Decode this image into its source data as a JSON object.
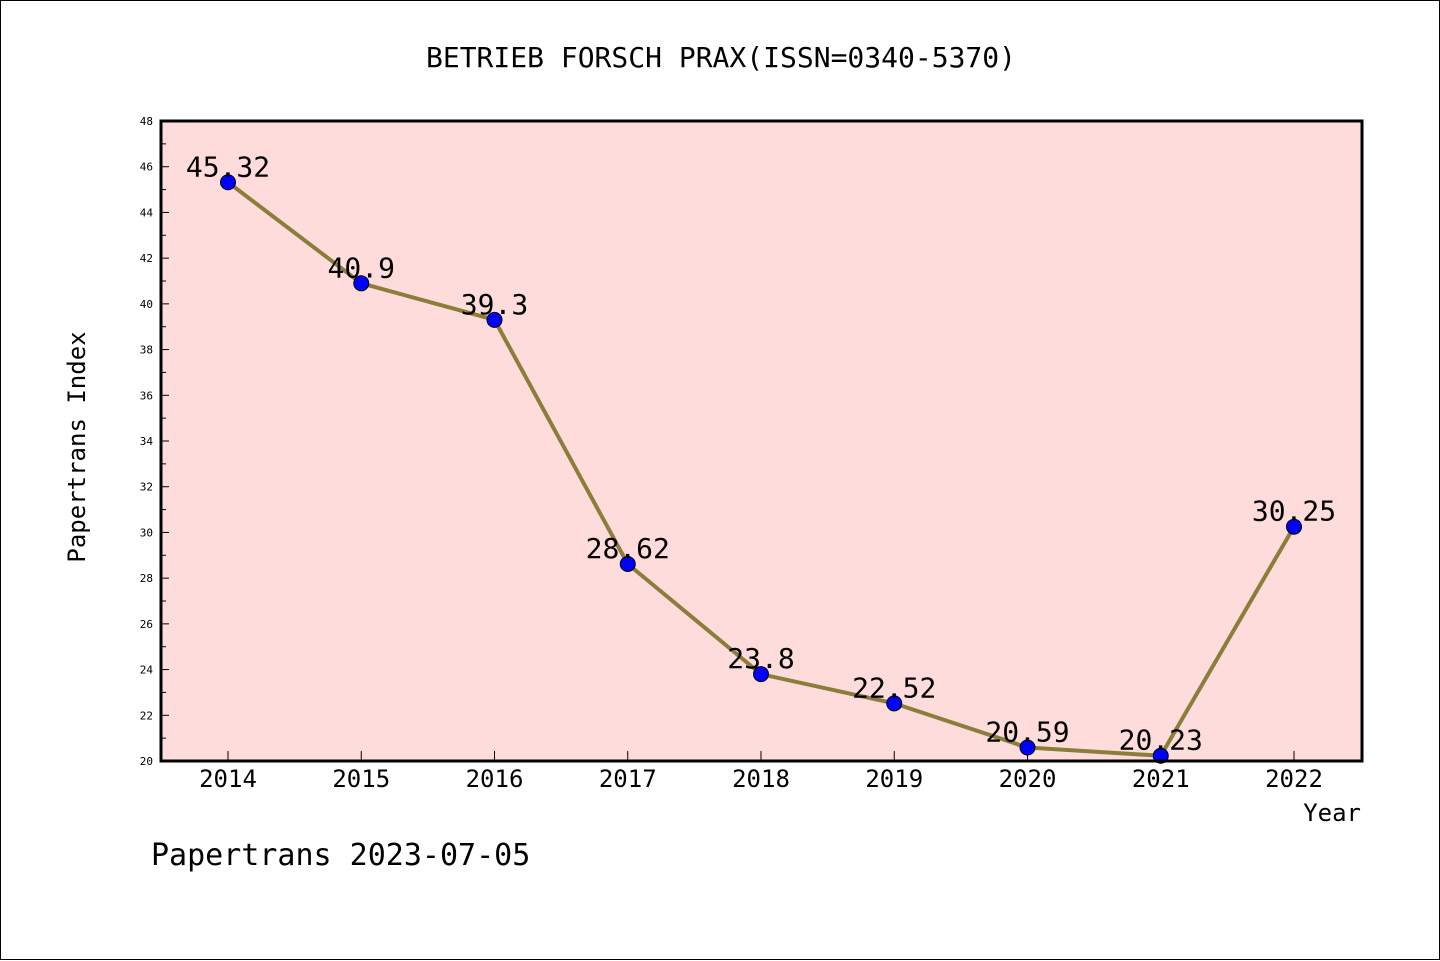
{
  "chart_data": {
    "type": "line",
    "title": "BETRIEB FORSCH PRAX(ISSN=0340-5370)",
    "xlabel": "Year",
    "ylabel": "Papertrans Index",
    "categories": [
      "2014",
      "2015",
      "2016",
      "2017",
      "2018",
      "2019",
      "2020",
      "2021",
      "2022"
    ],
    "series": [
      {
        "values": [
          45.32,
          40.9,
          39.3,
          28.62,
          23.8,
          22.52,
          20.59,
          20.23,
          30.25
        ],
        "labels": [
          "45.32",
          "40.9",
          "39.3",
          "28.62",
          "23.8",
          "22.52",
          "20.59",
          "20.23",
          "30.25"
        ]
      }
    ],
    "ylim": [
      20,
      48
    ],
    "yticks": [
      "20",
      "22",
      "24",
      "26",
      "28",
      "30",
      "32",
      "34",
      "36",
      "38",
      "40",
      "42",
      "44",
      "46",
      "48"
    ],
    "grid": false,
    "colors": {
      "plot_background": "#ffdcdc",
      "line": "#8b7d3a",
      "marker": "#0000ff"
    }
  },
  "footer": "Papertrans 2023-07-05"
}
